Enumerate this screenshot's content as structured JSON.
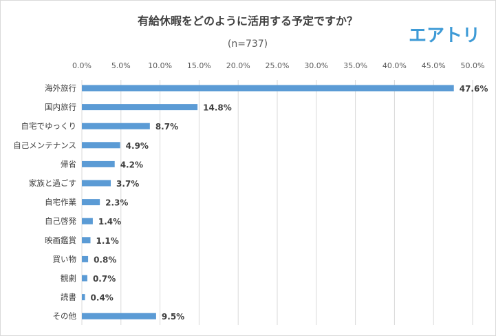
{
  "chart_data": {
    "type": "bar",
    "orientation": "horizontal",
    "title": "有給休暇をどのように活用する予定ですか？",
    "subtitle": "(n=737)",
    "categories": [
      "海外旅行",
      "国内旅行",
      "自宅でゆっくり",
      "自己メンテナンス",
      "帰省",
      "家族と過ごす",
      "自宅作業",
      "自己啓発",
      "映画鑑賞",
      "買い物",
      "観劇",
      "読書",
      "その他"
    ],
    "values": [
      47.6,
      14.8,
      8.7,
      4.9,
      4.2,
      3.7,
      2.3,
      1.4,
      1.1,
      0.8,
      0.7,
      0.4,
      9.5
    ],
    "value_labels": [
      "47.6%",
      "14.8%",
      "8.7%",
      "4.9%",
      "4.2%",
      "3.7%",
      "2.3%",
      "1.4%",
      "1.1%",
      "0.8%",
      "0.7%",
      "0.4%",
      "9.5%"
    ],
    "xlim": [
      0,
      50
    ],
    "ticks": [
      "0.0%",
      "5.0%",
      "10.0%",
      "15.0%",
      "20.0%",
      "25.0%",
      "30.0%",
      "35.0%",
      "40.0%",
      "45.0%",
      "50.0%"
    ],
    "tick_values": [
      0,
      5,
      10,
      15,
      20,
      25,
      30,
      35,
      40,
      45,
      50
    ],
    "axis_position": "top",
    "grid": true,
    "bar_color": "#5b9bd5",
    "grid_color": "#d9d9d9"
  },
  "logo": {
    "text": "エアトリ",
    "color": "#3d9ad6"
  }
}
